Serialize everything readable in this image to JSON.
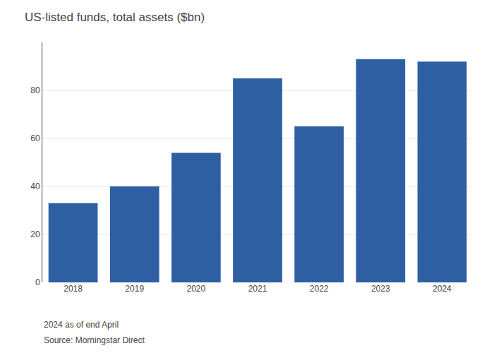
{
  "chart_data": {
    "type": "bar",
    "title": "US-listed funds, total assets ($bn)",
    "categories": [
      "2018",
      "2019",
      "2020",
      "2021",
      "2022",
      "2023",
      "2024"
    ],
    "values": [
      33,
      40,
      54,
      85,
      65,
      93,
      92
    ],
    "color": "#2E5FA3",
    "ylim": [
      0,
      100
    ],
    "yticks": [
      0,
      20,
      40,
      60,
      80
    ],
    "grid": true,
    "annotations": [
      "2024 as of end April",
      "Source: Morningstar Direct"
    ]
  }
}
